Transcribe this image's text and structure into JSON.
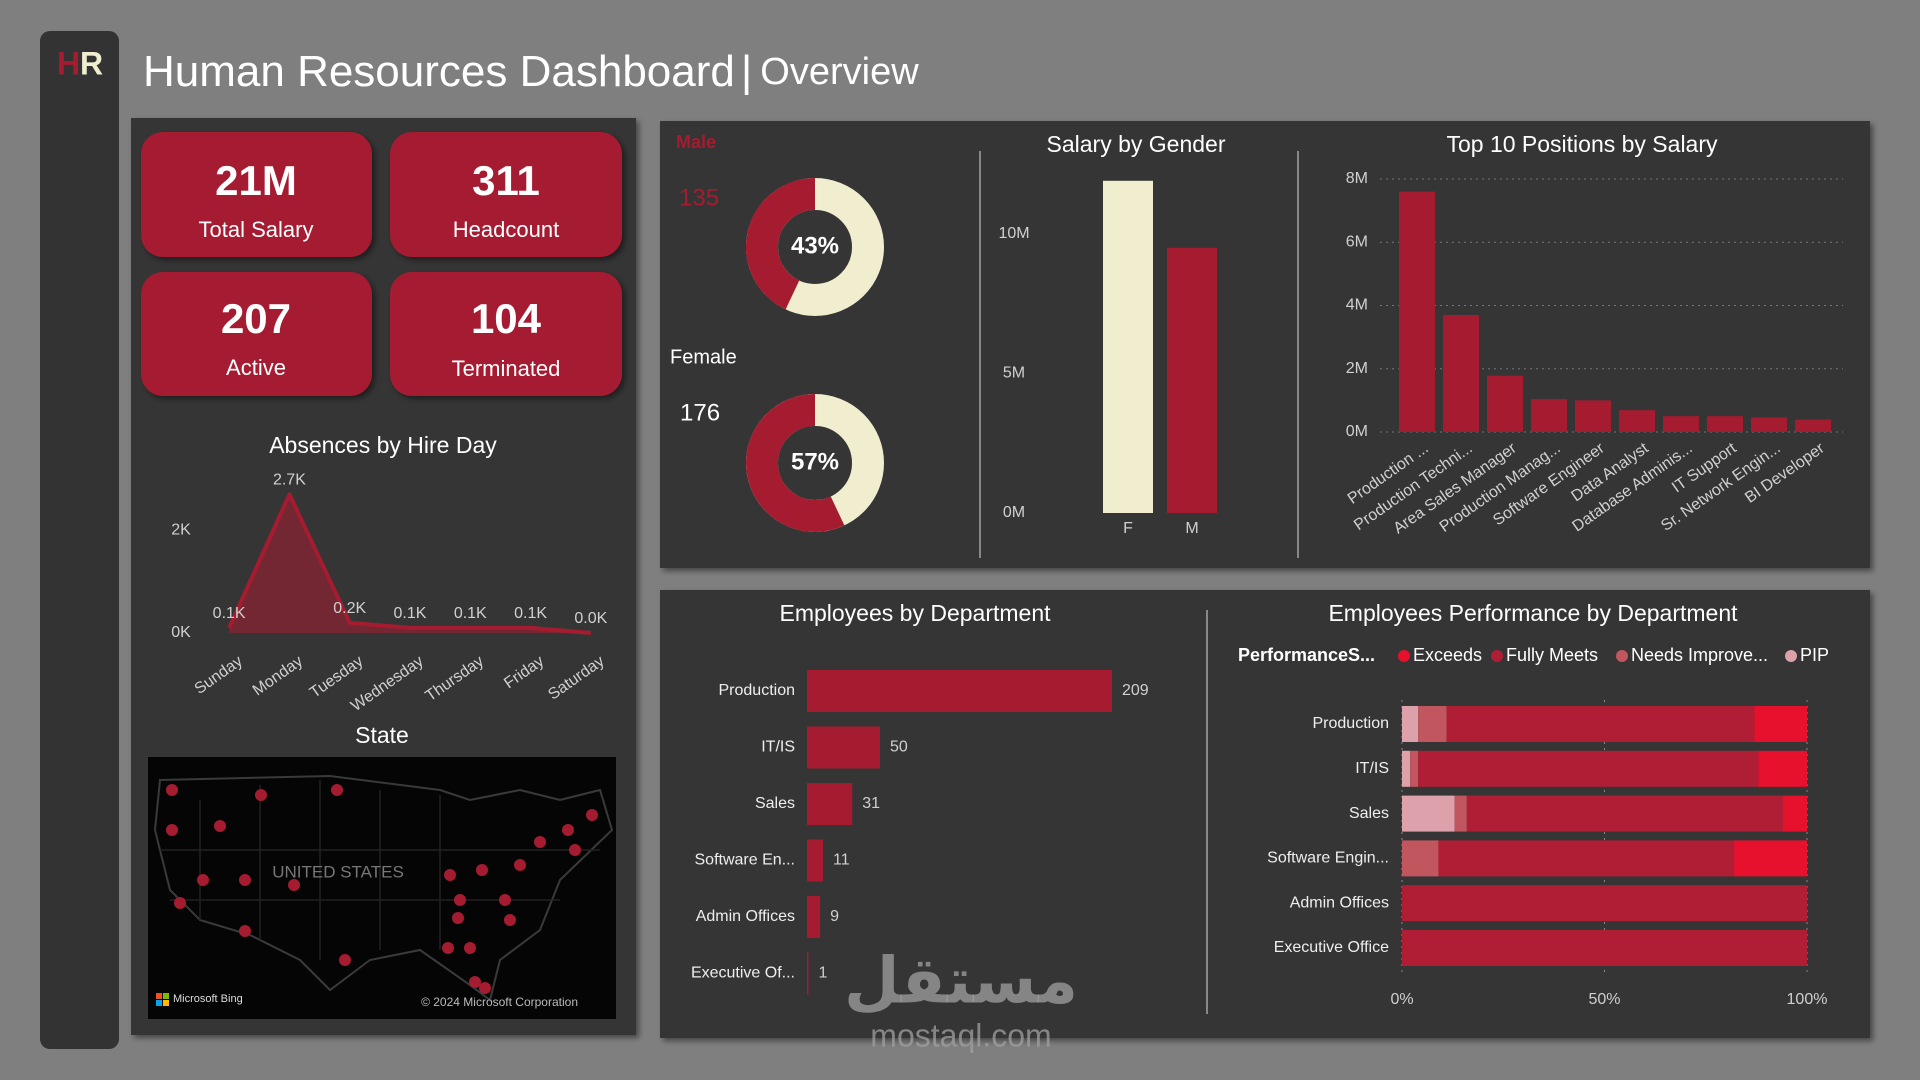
{
  "header": {
    "logo_h": "H",
    "logo_r": "R",
    "title": "Human Resources Dashboard",
    "separator": "|",
    "subtitle": "Overview"
  },
  "kpis": [
    {
      "value": "21M",
      "label": "Total Salary"
    },
    {
      "value": 311,
      "label": "Headcount"
    },
    {
      "value": 207,
      "label": "Active"
    },
    {
      "value": 104,
      "label": "Terminated"
    }
  ],
  "chart_data": [
    {
      "type": "area",
      "title": "Absences by Hire Day",
      "categories": [
        "Sunday",
        "Monday",
        "Tuesday",
        "Wednesday",
        "Thursday",
        "Friday",
        "Saturday"
      ],
      "values": [
        100,
        2700,
        200,
        100,
        100,
        100,
        0
      ],
      "value_labels": [
        "0.1K",
        "2.7K",
        "0.2K",
        "0.1K",
        "0.1K",
        "0.1K",
        "0.0K"
      ],
      "ylim": [
        0,
        3000
      ],
      "yticks": [
        {
          "value": 0,
          "label": "0K"
        },
        {
          "value": 2000,
          "label": "2K"
        }
      ],
      "color": "#a51c30"
    },
    {
      "type": "donut",
      "categories": [
        "Male",
        "Female"
      ],
      "counts": [
        135,
        176
      ],
      "values": [
        43,
        57
      ],
      "value_labels": [
        "43%",
        "57%"
      ],
      "color": "#a51c30",
      "track_color": "#f1eed0"
    },
    {
      "type": "bar",
      "title": "Salary by Gender",
      "categories": [
        "F",
        "M"
      ],
      "values": [
        11900000,
        9500000
      ],
      "colors": [
        "#f1eed0",
        "#a51c30"
      ],
      "ylim": [
        0,
        12000000
      ],
      "yticks": [
        {
          "value": 0,
          "label": "0M"
        },
        {
          "value": 5000000,
          "label": "5M"
        },
        {
          "value": 10000000,
          "label": "10M"
        }
      ],
      "grid": false
    },
    {
      "type": "bar",
      "title": "Top 10 Positions by Salary",
      "categories": [
        "Production ...",
        "Production Techni...",
        "Area Sales Manager",
        "Production Manag...",
        "Software Engineer",
        "Data Analyst",
        "Database Adminis...",
        "IT Support",
        "Sr. Network Engin...",
        "BI Developer"
      ],
      "values": [
        7600000,
        3700000,
        1780000,
        1040000,
        1000000,
        690000,
        500000,
        500000,
        460000,
        390000
      ],
      "color": "#a51c30",
      "ylim": [
        0,
        8000000
      ],
      "yticks": [
        {
          "value": 0,
          "label": "0M"
        },
        {
          "value": 2000000,
          "label": "2M"
        },
        {
          "value": 4000000,
          "label": "4M"
        },
        {
          "value": 6000000,
          "label": "6M"
        },
        {
          "value": 8000000,
          "label": "8M"
        }
      ],
      "grid": true
    },
    {
      "type": "hbar",
      "title": "Employees by Department",
      "categories": [
        "Production",
        "IT/IS",
        "Sales",
        "Software En...",
        "Admin Offices",
        "Executive Of..."
      ],
      "values": [
        209,
        50,
        31,
        11,
        9,
        1
      ],
      "color": "#a51c30"
    },
    {
      "type": "stacked_hbar",
      "title": "Employees Performance by Department",
      "legend_title": "PerformanceS...",
      "categories": [
        "Production",
        "IT/IS",
        "Sales",
        "Software Engin...",
        "Admin Offices",
        "Executive Office"
      ],
      "series": [
        {
          "name": "Exceeds",
          "color": "#e8112d",
          "values": [
            13,
            12,
            6,
            18,
            0,
            0
          ]
        },
        {
          "name": "Fully Meets",
          "color": "#b01e35",
          "values": [
            76,
            84,
            78,
            73,
            100,
            100
          ]
        },
        {
          "name": "Needs Improve...",
          "color": "#c1565f",
          "values": [
            7,
            2,
            3,
            9,
            0,
            0
          ]
        },
        {
          "name": "PIP",
          "color": "#dca1aa",
          "values": [
            4,
            2,
            13,
            0,
            0,
            0
          ]
        }
      ],
      "xlim": [
        0,
        100
      ],
      "xticks": [
        {
          "value": 0,
          "label": "0%"
        },
        {
          "value": 50,
          "label": "50%"
        },
        {
          "value": 100,
          "label": "100%"
        }
      ],
      "grid": true
    }
  ],
  "map": {
    "title": "State",
    "country": "UNITED STATES",
    "provider": "Microsoft Bing",
    "copyright": "© 2024 Microsoft Corporation"
  },
  "watermark": {
    "logo": "مستقل",
    "site": "mostaql.com"
  }
}
